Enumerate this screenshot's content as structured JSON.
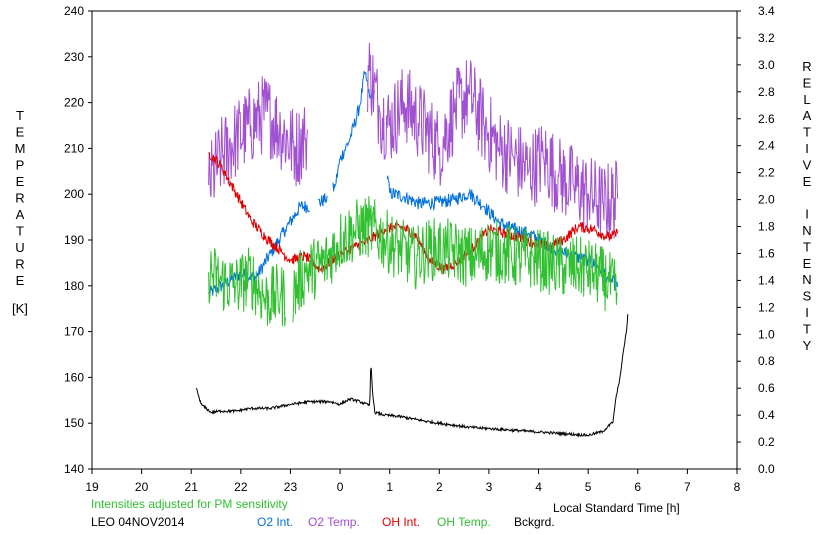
{
  "chart_data": {
    "type": "line",
    "left_axis_letters": [
      "T",
      "E",
      "M",
      "P",
      "E",
      "R",
      "A",
      "T",
      "U",
      "R",
      "E"
    ],
    "left_axis_unit": "[K]",
    "right_axis_letters": [
      "R",
      "E",
      "L",
      "A",
      "T",
      "I",
      "V",
      "E",
      "",
      "I",
      "N",
      "T",
      "E",
      "N",
      "S",
      "I",
      "T",
      "Y"
    ],
    "xlabel": "Local Standard Time [h]",
    "note": "Intensities adjusted for PM sensitivity",
    "site_date": "LEO 04NOV2014",
    "x_ticks": [
      "19",
      "20",
      "21",
      "22",
      "23",
      "0",
      "1",
      "2",
      "3",
      "4",
      "5",
      "6",
      "7",
      "8"
    ],
    "xlim": [
      19,
      32
    ],
    "left_ylim": [
      140,
      240
    ],
    "left_ticks": [
      "140",
      "150",
      "160",
      "170",
      "180",
      "190",
      "200",
      "210",
      "220",
      "230",
      "240"
    ],
    "right_ylim": [
      0.0,
      3.4
    ],
    "right_ticks": [
      "0.0",
      "0.2",
      "0.4",
      "0.6",
      "0.8",
      "1.0",
      "1.2",
      "1.4",
      "1.6",
      "1.8",
      "2.0",
      "2.2",
      "2.4",
      "2.6",
      "2.8",
      "3.0",
      "3.2",
      "3.4"
    ],
    "colors": {
      "o2_int": "#0070dd",
      "o2_temp": "#a050d0",
      "oh_int": "#e00000",
      "oh_temp": "#30c030",
      "bckgrd": "#000000",
      "note": "#30c030"
    },
    "series": [
      {
        "name": "O2 Int.",
        "axis": "right",
        "color": "#0070dd",
        "noise": 0.05,
        "x": [
          21.35,
          21.7,
          22.0,
          22.3,
          22.6,
          22.9,
          23.2,
          23.4,
          23.7,
          23.9,
          24.0,
          24.2,
          24.4,
          24.5,
          24.6,
          24.7,
          25.0,
          25.3,
          25.6,
          26.0,
          26.3,
          26.6,
          26.9,
          27.2,
          27.5,
          27.8,
          28.1,
          28.4,
          28.7,
          29.0,
          29.2,
          29.4,
          29.6
        ],
        "y": [
          1.3,
          1.38,
          1.45,
          1.42,
          1.6,
          1.78,
          1.95,
          1.95,
          2.0,
          2.1,
          2.3,
          2.45,
          2.7,
          2.95,
          2.75,
          2.8,
          2.05,
          2.02,
          1.97,
          1.98,
          2.0,
          2.05,
          1.95,
          1.83,
          1.78,
          1.75,
          1.68,
          1.62,
          1.58,
          1.55,
          1.5,
          1.42,
          1.35
        ],
        "gaps": [
          [
            23.4,
            23.55
          ],
          [
            23.75,
            23.85
          ],
          [
            24.7,
            24.95
          ]
        ]
      },
      {
        "name": "O2 Temp.",
        "axis": "left",
        "color": "#a050d0",
        "noise": 9,
        "x": [
          21.35,
          21.6,
          21.9,
          22.2,
          22.5,
          22.8,
          23.1,
          23.3,
          24.6,
          24.8,
          25.0,
          25.3,
          25.6,
          26.0,
          26.3,
          26.6,
          26.9,
          27.2,
          27.5,
          27.8,
          28.1,
          28.4,
          28.7,
          29.0,
          29.3,
          29.6
        ],
        "y": [
          202,
          208,
          212,
          215,
          218,
          214,
          210,
          212,
          227,
          218,
          215,
          220,
          216,
          210,
          218,
          222,
          215,
          210,
          208,
          205,
          208,
          204,
          202,
          200,
          198,
          199
        ],
        "gaps": [
          [
            23.35,
            24.55
          ]
        ]
      },
      {
        "name": "OH Int.",
        "axis": "right",
        "color": "#e00000",
        "noise": 0.04,
        "x": [
          21.35,
          21.6,
          21.9,
          22.2,
          22.5,
          22.8,
          23.0,
          23.3,
          23.6,
          24.0,
          24.3,
          24.6,
          24.9,
          25.2,
          25.5,
          25.8,
          26.1,
          26.4,
          26.7,
          27.0,
          27.3,
          27.6,
          27.9,
          28.2,
          28.5,
          28.8,
          29.1,
          29.4,
          29.6
        ],
        "y": [
          2.35,
          2.25,
          2.05,
          1.85,
          1.72,
          1.62,
          1.55,
          1.58,
          1.48,
          1.6,
          1.65,
          1.7,
          1.78,
          1.8,
          1.75,
          1.55,
          1.48,
          1.55,
          1.65,
          1.78,
          1.75,
          1.72,
          1.68,
          1.65,
          1.7,
          1.8,
          1.78,
          1.72,
          1.75
        ],
        "gaps": []
      },
      {
        "name": "OH Temp.",
        "axis": "left",
        "color": "#30c030",
        "noise": 7,
        "x": [
          21.35,
          21.6,
          21.9,
          22.2,
          22.5,
          22.8,
          23.0,
          23.3,
          23.7,
          24.0,
          24.3,
          24.6,
          24.9,
          25.2,
          25.5,
          25.8,
          26.1,
          26.4,
          26.7,
          27.0,
          27.3,
          27.6,
          27.9,
          28.2,
          28.5,
          28.8,
          29.1,
          29.4,
          29.6
        ],
        "y": [
          183,
          181,
          180,
          182,
          177,
          178,
          177,
          183,
          185,
          190,
          192,
          193,
          190,
          188,
          186,
          188,
          188,
          187,
          186,
          188,
          187,
          186,
          186,
          185,
          184,
          184,
          183,
          181,
          178
        ],
        "gaps": [
          [
            22.9,
            23.05
          ]
        ]
      },
      {
        "name": "Bckgrd.",
        "axis": "right",
        "color": "#000000",
        "noise": 0.01,
        "x": [
          21.1,
          21.2,
          21.4,
          21.6,
          21.9,
          22.2,
          22.6,
          23.0,
          23.4,
          23.8,
          24.0,
          24.2,
          24.4,
          24.6,
          24.62,
          24.66,
          24.7,
          24.9,
          25.2,
          25.5,
          25.8,
          26.2,
          26.6,
          27.0,
          27.4,
          27.8,
          28.2,
          28.6,
          29.0,
          29.3,
          29.5,
          29.55,
          29.65,
          29.72,
          29.78,
          29.8
        ],
        "y": [
          0.6,
          0.48,
          0.42,
          0.43,
          0.43,
          0.45,
          0.45,
          0.48,
          0.5,
          0.5,
          0.48,
          0.52,
          0.5,
          0.47,
          0.8,
          0.55,
          0.42,
          0.4,
          0.39,
          0.37,
          0.35,
          0.33,
          0.31,
          0.3,
          0.29,
          0.28,
          0.27,
          0.26,
          0.25,
          0.28,
          0.35,
          0.5,
          0.7,
          0.9,
          1.05,
          1.15
        ],
        "gaps": []
      }
    ]
  }
}
